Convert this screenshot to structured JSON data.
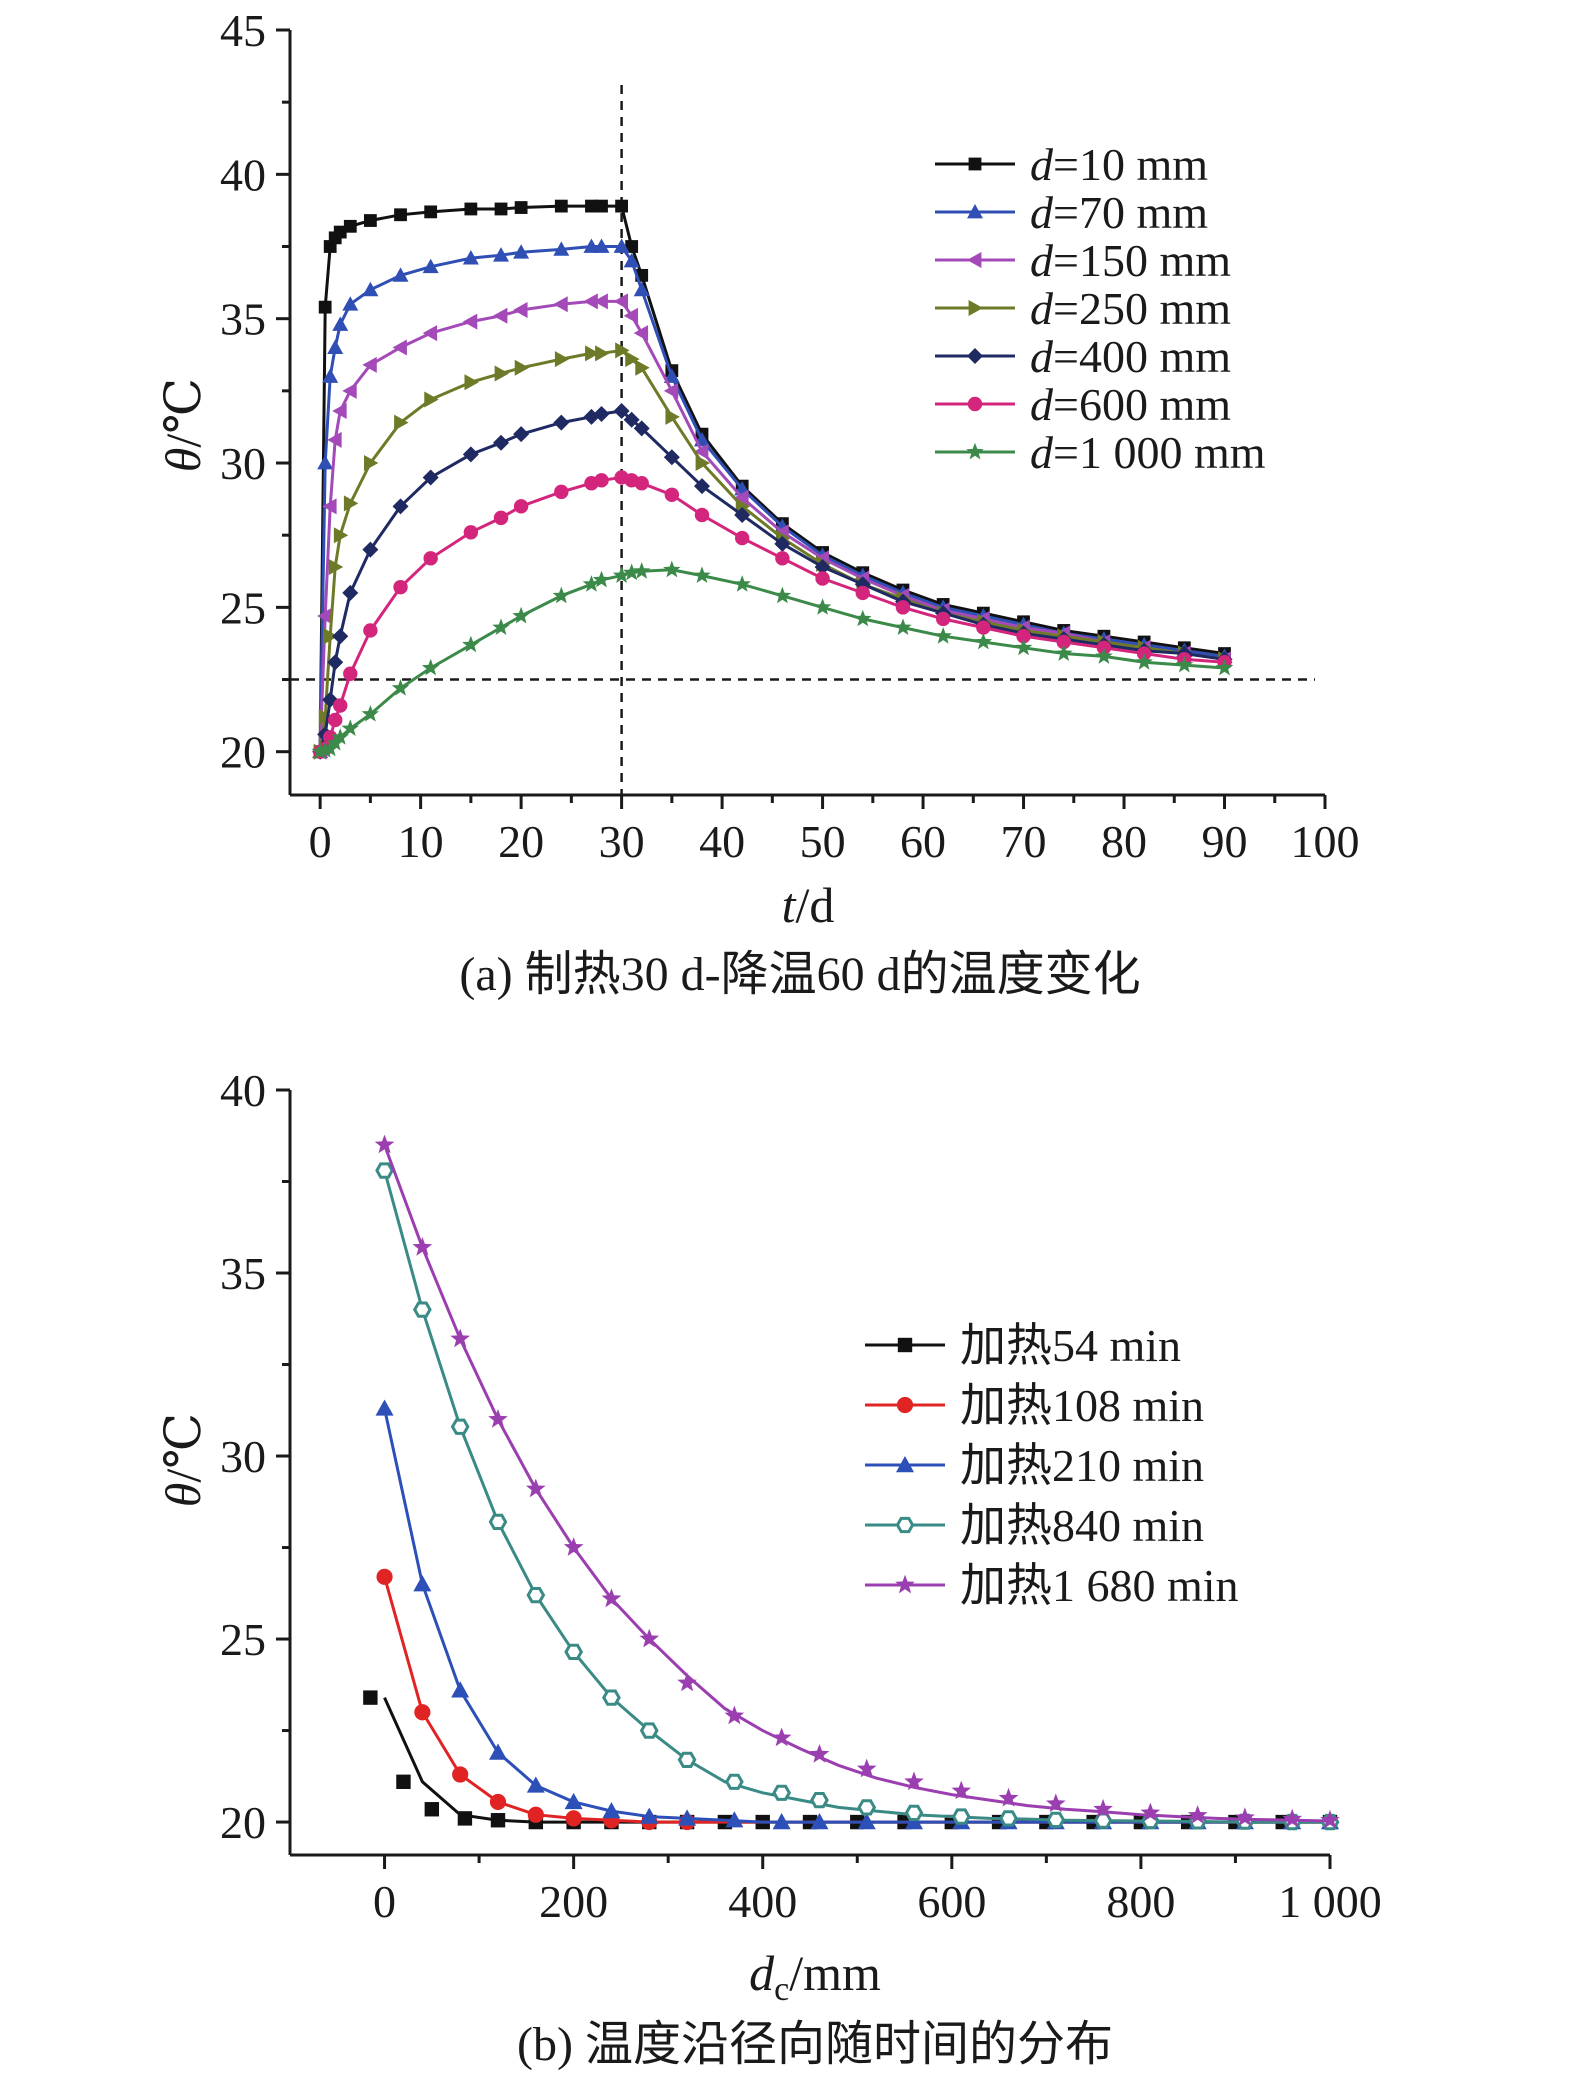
{
  "chart_data": [
    {
      "type": "line",
      "caption": "(a) 制热30 d-降温60 d的温度变化",
      "xlabel_var": "t",
      "xlabel_unit": "/d",
      "ylabel_var": "θ",
      "ylabel_unit": "/℃",
      "xlim": [
        -3,
        100
      ],
      "ylim": [
        18.5,
        45
      ],
      "xticks": [
        "0",
        "10",
        "20",
        "30",
        "40",
        "50",
        "60",
        "70",
        "80",
        "90",
        "100"
      ],
      "yticks": [
        "20",
        "25",
        "30",
        "35",
        "40",
        "45"
      ],
      "ref_lines": {
        "vertical_x": 30,
        "horizontal_y": 22.5
      },
      "legend_position": "top-right",
      "x": [
        0,
        0.5,
        1,
        1.5,
        2,
        3,
        5,
        8,
        11,
        15,
        18,
        20,
        24,
        27,
        28,
        30,
        31,
        32,
        35,
        38,
        42,
        46,
        50,
        54,
        58,
        62,
        66,
        70,
        74,
        78,
        82,
        86,
        90
      ],
      "series": [
        {
          "name": "d=10 mm",
          "prefix": "d",
          "label_rest": "=10 mm",
          "color": "#111111",
          "marker": "square",
          "values": [
            20.0,
            35.4,
            37.5,
            37.8,
            38.0,
            38.2,
            38.4,
            38.6,
            38.7,
            38.8,
            38.8,
            38.85,
            38.9,
            38.9,
            38.9,
            38.9,
            37.5,
            36.5,
            33.2,
            31.0,
            29.2,
            27.9,
            26.9,
            26.2,
            25.6,
            25.1,
            24.8,
            24.5,
            24.2,
            24.0,
            23.8,
            23.6,
            23.4
          ]
        },
        {
          "name": "d=70 mm",
          "prefix": "d",
          "label_rest": "=70 mm",
          "color": "#2f4fb5",
          "marker": "triangle-up",
          "values": [
            20.0,
            30.0,
            33.0,
            34.0,
            34.8,
            35.5,
            36.0,
            36.5,
            36.8,
            37.1,
            37.2,
            37.3,
            37.4,
            37.5,
            37.5,
            37.5,
            37.0,
            36.0,
            33.0,
            30.8,
            29.1,
            27.8,
            26.8,
            26.1,
            25.5,
            25.0,
            24.7,
            24.4,
            24.1,
            23.9,
            23.7,
            23.5,
            23.3
          ]
        },
        {
          "name": "d=150 mm",
          "prefix": "d",
          "label_rest": "=150 mm",
          "color": "#a34ab8",
          "marker": "triangle-left",
          "values": [
            20.0,
            24.7,
            28.5,
            30.8,
            31.8,
            32.5,
            33.4,
            34.0,
            34.5,
            34.9,
            35.1,
            35.3,
            35.5,
            35.6,
            35.6,
            35.6,
            35.1,
            34.5,
            32.5,
            30.4,
            28.8,
            27.6,
            26.7,
            26.0,
            25.4,
            24.9,
            24.6,
            24.3,
            24.1,
            23.8,
            23.6,
            23.4,
            23.2
          ]
        },
        {
          "name": "d=250 mm",
          "prefix": "d",
          "label_rest": "=250 mm",
          "color": "#6e7a27",
          "marker": "triangle-right",
          "values": [
            20.0,
            21.2,
            24.0,
            26.4,
            27.5,
            28.6,
            30.0,
            31.4,
            32.2,
            32.8,
            33.1,
            33.3,
            33.6,
            33.8,
            33.8,
            33.9,
            33.6,
            33.3,
            31.6,
            30.0,
            28.5,
            27.4,
            26.5,
            25.8,
            25.3,
            24.8,
            24.5,
            24.2,
            24.0,
            23.8,
            23.6,
            23.4,
            23.2
          ]
        },
        {
          "name": "d=400 mm",
          "prefix": "d",
          "label_rest": "=400 mm",
          "color": "#1f2a63",
          "marker": "diamond",
          "values": [
            20.0,
            20.6,
            21.8,
            23.1,
            24.0,
            25.5,
            27.0,
            28.5,
            29.5,
            30.3,
            30.7,
            31.0,
            31.4,
            31.6,
            31.7,
            31.8,
            31.5,
            31.2,
            30.2,
            29.2,
            28.2,
            27.2,
            26.4,
            25.8,
            25.2,
            24.8,
            24.4,
            24.1,
            23.9,
            23.7,
            23.5,
            23.4,
            23.2
          ]
        },
        {
          "name": "d=600 mm",
          "prefix": "d",
          "label_rest": "=600 mm",
          "color": "#d4257d",
          "marker": "circle",
          "values": [
            20.0,
            20.1,
            20.5,
            21.1,
            21.6,
            22.7,
            24.2,
            25.7,
            26.7,
            27.6,
            28.1,
            28.5,
            29.0,
            29.3,
            29.4,
            29.5,
            29.4,
            29.3,
            28.9,
            28.2,
            27.4,
            26.7,
            26.0,
            25.5,
            25.0,
            24.6,
            24.3,
            24.0,
            23.8,
            23.6,
            23.4,
            23.2,
            23.1
          ]
        },
        {
          "name": "d=1 000 mm",
          "prefix": "d",
          "label_rest": "=1 000 mm",
          "color": "#3c8a4a",
          "marker": "star",
          "values": [
            20.0,
            20.05,
            20.1,
            20.3,
            20.5,
            20.8,
            21.3,
            22.2,
            22.9,
            23.7,
            24.3,
            24.7,
            25.4,
            25.8,
            25.95,
            26.1,
            26.2,
            26.25,
            26.3,
            26.1,
            25.8,
            25.4,
            25.0,
            24.6,
            24.3,
            24.0,
            23.8,
            23.6,
            23.4,
            23.3,
            23.1,
            23.0,
            22.9
          ]
        }
      ]
    },
    {
      "type": "line",
      "caption": "(b) 温度沿径向随时间的分布",
      "xlabel_var": "d",
      "xlabel_sub": "c",
      "xlabel_unit": "/mm",
      "ylabel_var": "θ",
      "ylabel_unit": "/℃",
      "xlim": [
        -100,
        1000
      ],
      "ylim": [
        19.1,
        40
      ],
      "xticks": [
        "0",
        "200",
        "400",
        "600",
        "800",
        "1 000"
      ],
      "yticks": [
        "20",
        "25",
        "30",
        "35",
        "40"
      ],
      "legend_position": "center-right",
      "x": [
        0,
        40,
        80,
        120,
        160,
        200,
        240,
        280,
        320,
        360,
        400,
        440,
        480,
        520,
        560,
        600,
        640,
        680,
        720,
        760,
        800,
        840,
        880,
        920,
        960,
        1000
      ],
      "series": [
        {
          "name": "加热54 min",
          "color": "#111111",
          "marker": "square",
          "line_x": [
            0,
            40,
            80,
            120,
            160,
            200,
            240,
            280,
            320,
            360,
            400,
            440,
            480,
            520,
            560,
            600,
            640,
            680,
            720,
            760,
            800,
            840,
            880,
            920,
            960,
            1000
          ],
          "line_values": [
            23.4,
            21.1,
            20.2,
            20.05,
            20.0,
            20.0,
            20.0,
            20.0,
            20.0,
            20.0,
            20.0,
            20.0,
            20.0,
            20.0,
            20.0,
            20.0,
            20.0,
            20.0,
            20.0,
            20.0,
            20.0,
            20.0,
            20.0,
            20.0,
            20.0,
            20.0
          ],
          "marker_x": [
            -15,
            20,
            50,
            85,
            120,
            160,
            200,
            240,
            280,
            320,
            360,
            400,
            450,
            500,
            550,
            600,
            650,
            700,
            750,
            800,
            850,
            900,
            950,
            1000
          ],
          "marker_values": [
            23.4,
            21.1,
            20.35,
            20.1,
            20.05,
            20.0,
            20.0,
            20.0,
            20.0,
            20.0,
            20.0,
            20.0,
            20.0,
            20.0,
            20.0,
            20.0,
            20.0,
            20.0,
            20.0,
            20.0,
            20.0,
            20.0,
            20.0,
            20.0
          ]
        },
        {
          "name": "加热108 min",
          "color": "#e02424",
          "marker": "circle",
          "line_x": [
            0,
            40,
            80,
            120,
            160,
            200,
            240,
            280,
            320,
            360,
            400,
            440,
            480,
            520,
            560,
            600,
            640,
            680,
            720,
            760,
            800,
            840,
            880,
            920,
            960,
            1000
          ],
          "line_values": [
            26.7,
            23.0,
            21.3,
            20.55,
            20.2,
            20.1,
            20.05,
            20.0,
            20.0,
            20.0,
            20.0,
            20.0,
            20.0,
            20.0,
            20.0,
            20.0,
            20.0,
            20.0,
            20.0,
            20.0,
            20.0,
            20.0,
            20.0,
            20.0,
            20.0,
            20.0
          ],
          "marker_x": [
            0,
            40,
            80,
            120,
            160,
            200,
            240,
            280,
            320
          ],
          "marker_values": [
            26.7,
            23.0,
            21.3,
            20.55,
            20.2,
            20.1,
            20.05,
            20.0,
            20.0
          ]
        },
        {
          "name": "加热210 min",
          "color": "#2d4fb8",
          "marker": "triangle-up",
          "line_x": [
            0,
            40,
            80,
            120,
            160,
            200,
            240,
            280,
            320,
            360,
            400,
            440,
            480,
            520,
            560,
            600,
            640,
            680,
            720,
            760,
            800,
            840,
            880,
            920,
            960,
            1000
          ],
          "line_values": [
            31.3,
            26.5,
            23.6,
            21.9,
            21.0,
            20.55,
            20.3,
            20.15,
            20.1,
            20.05,
            20.0,
            20.0,
            20.0,
            20.0,
            20.0,
            20.0,
            20.0,
            20.0,
            20.0,
            20.0,
            20.0,
            20.0,
            20.0,
            20.0,
            20.0,
            20.0
          ],
          "marker_x": [
            0,
            40,
            80,
            120,
            160,
            200,
            240,
            280,
            320,
            370,
            420,
            460,
            510,
            560,
            610,
            660,
            710,
            760,
            810,
            860,
            910,
            960,
            1000
          ],
          "marker_values": [
            31.3,
            26.5,
            23.6,
            21.9,
            21.0,
            20.55,
            20.3,
            20.15,
            20.1,
            20.05,
            20.0,
            20.0,
            20.0,
            20.0,
            20.0,
            20.0,
            20.0,
            20.0,
            20.0,
            20.0,
            20.0,
            20.0,
            20.0
          ]
        },
        {
          "name": "加热840 min",
          "color": "#3a8a85",
          "marker": "hexagon-open",
          "line_x": [
            0,
            40,
            80,
            120,
            160,
            200,
            240,
            280,
            320,
            360,
            400,
            440,
            480,
            520,
            560,
            600,
            640,
            680,
            720,
            760,
            800,
            840,
            880,
            920,
            960,
            1000
          ],
          "line_values": [
            37.8,
            34.0,
            30.8,
            28.2,
            26.2,
            24.65,
            23.4,
            22.5,
            21.7,
            21.1,
            20.8,
            20.6,
            20.4,
            20.3,
            20.2,
            20.15,
            20.1,
            20.08,
            20.05,
            20.04,
            20.03,
            20.02,
            20.01,
            20.0,
            20.0,
            20.0
          ],
          "marker_x": [
            0,
            40,
            80,
            120,
            160,
            200,
            240,
            280,
            320,
            370,
            420,
            460,
            510,
            560,
            610,
            660,
            710,
            760,
            810,
            860,
            910,
            960,
            1000
          ],
          "marker_values": [
            37.8,
            34.0,
            30.8,
            28.2,
            26.2,
            24.65,
            23.4,
            22.5,
            21.7,
            21.1,
            20.8,
            20.6,
            20.4,
            20.25,
            20.15,
            20.1,
            20.06,
            20.04,
            20.03,
            20.02,
            20.01,
            20.0,
            20.0
          ]
        },
        {
          "name": "加热1 680 min",
          "color": "#9b3fb0",
          "marker": "star",
          "line_x": [
            0,
            40,
            80,
            120,
            160,
            200,
            240,
            280,
            320,
            360,
            400,
            440,
            480,
            520,
            560,
            600,
            640,
            680,
            720,
            760,
            800,
            840,
            880,
            920,
            960,
            1000
          ],
          "line_values": [
            38.5,
            35.7,
            33.2,
            31.0,
            29.1,
            27.5,
            26.1,
            25.0,
            24.0,
            23.1,
            22.5,
            22.0,
            21.55,
            21.2,
            20.95,
            20.75,
            20.6,
            20.45,
            20.35,
            20.28,
            20.2,
            20.15,
            20.1,
            20.07,
            20.05,
            20.03
          ],
          "marker_x": [
            0,
            40,
            80,
            120,
            160,
            200,
            240,
            280,
            320,
            370,
            420,
            460,
            510,
            560,
            610,
            660,
            710,
            760,
            810,
            860,
            910,
            960,
            1000
          ],
          "marker_values": [
            38.5,
            35.7,
            33.2,
            31.0,
            29.1,
            27.5,
            26.1,
            25.0,
            23.8,
            22.9,
            22.3,
            21.85,
            21.45,
            21.1,
            20.85,
            20.65,
            20.5,
            20.35,
            20.25,
            20.18,
            20.12,
            20.08,
            20.05
          ]
        }
      ]
    }
  ]
}
